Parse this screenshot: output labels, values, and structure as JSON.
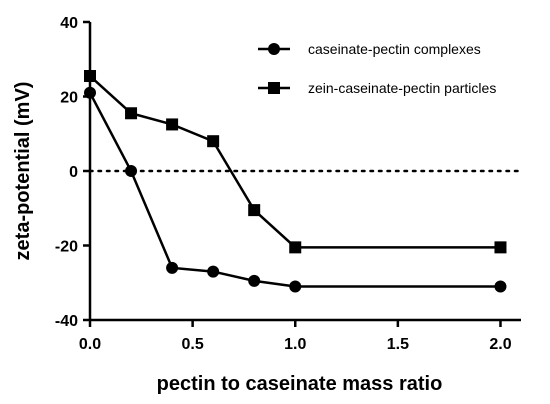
{
  "chart_data": {
    "type": "line",
    "title": "",
    "xlabel": "pectin to caseinate mass ratio",
    "ylabel": "zeta-potential (mV)",
    "xlim": [
      0,
      2.1
    ],
    "ylim": [
      -40,
      40
    ],
    "x_ticks": [
      "0.0",
      "0.5",
      "1.0",
      "1.5",
      "2.0"
    ],
    "y_ticks": [
      "40",
      "20",
      "0",
      "-20",
      "-40"
    ],
    "grid": false,
    "reference_line": {
      "y": 0,
      "style": "dotted"
    },
    "legend_position": "top-right",
    "series": [
      {
        "name": "caseinate-pectin complexes",
        "marker": "circle",
        "color": "#000000",
        "x": [
          0.0,
          0.2,
          0.4,
          0.6,
          0.8,
          1.0,
          2.0
        ],
        "y": [
          21,
          0,
          -26,
          -27,
          -29.5,
          -31,
          -31
        ]
      },
      {
        "name": "zein-caseinate-pectin particles",
        "marker": "square",
        "color": "#000000",
        "x": [
          0.0,
          0.2,
          0.4,
          0.6,
          0.8,
          1.0,
          2.0
        ],
        "y": [
          25.5,
          15.5,
          12.5,
          8,
          -10.5,
          -20.5,
          -20.5
        ]
      }
    ]
  }
}
